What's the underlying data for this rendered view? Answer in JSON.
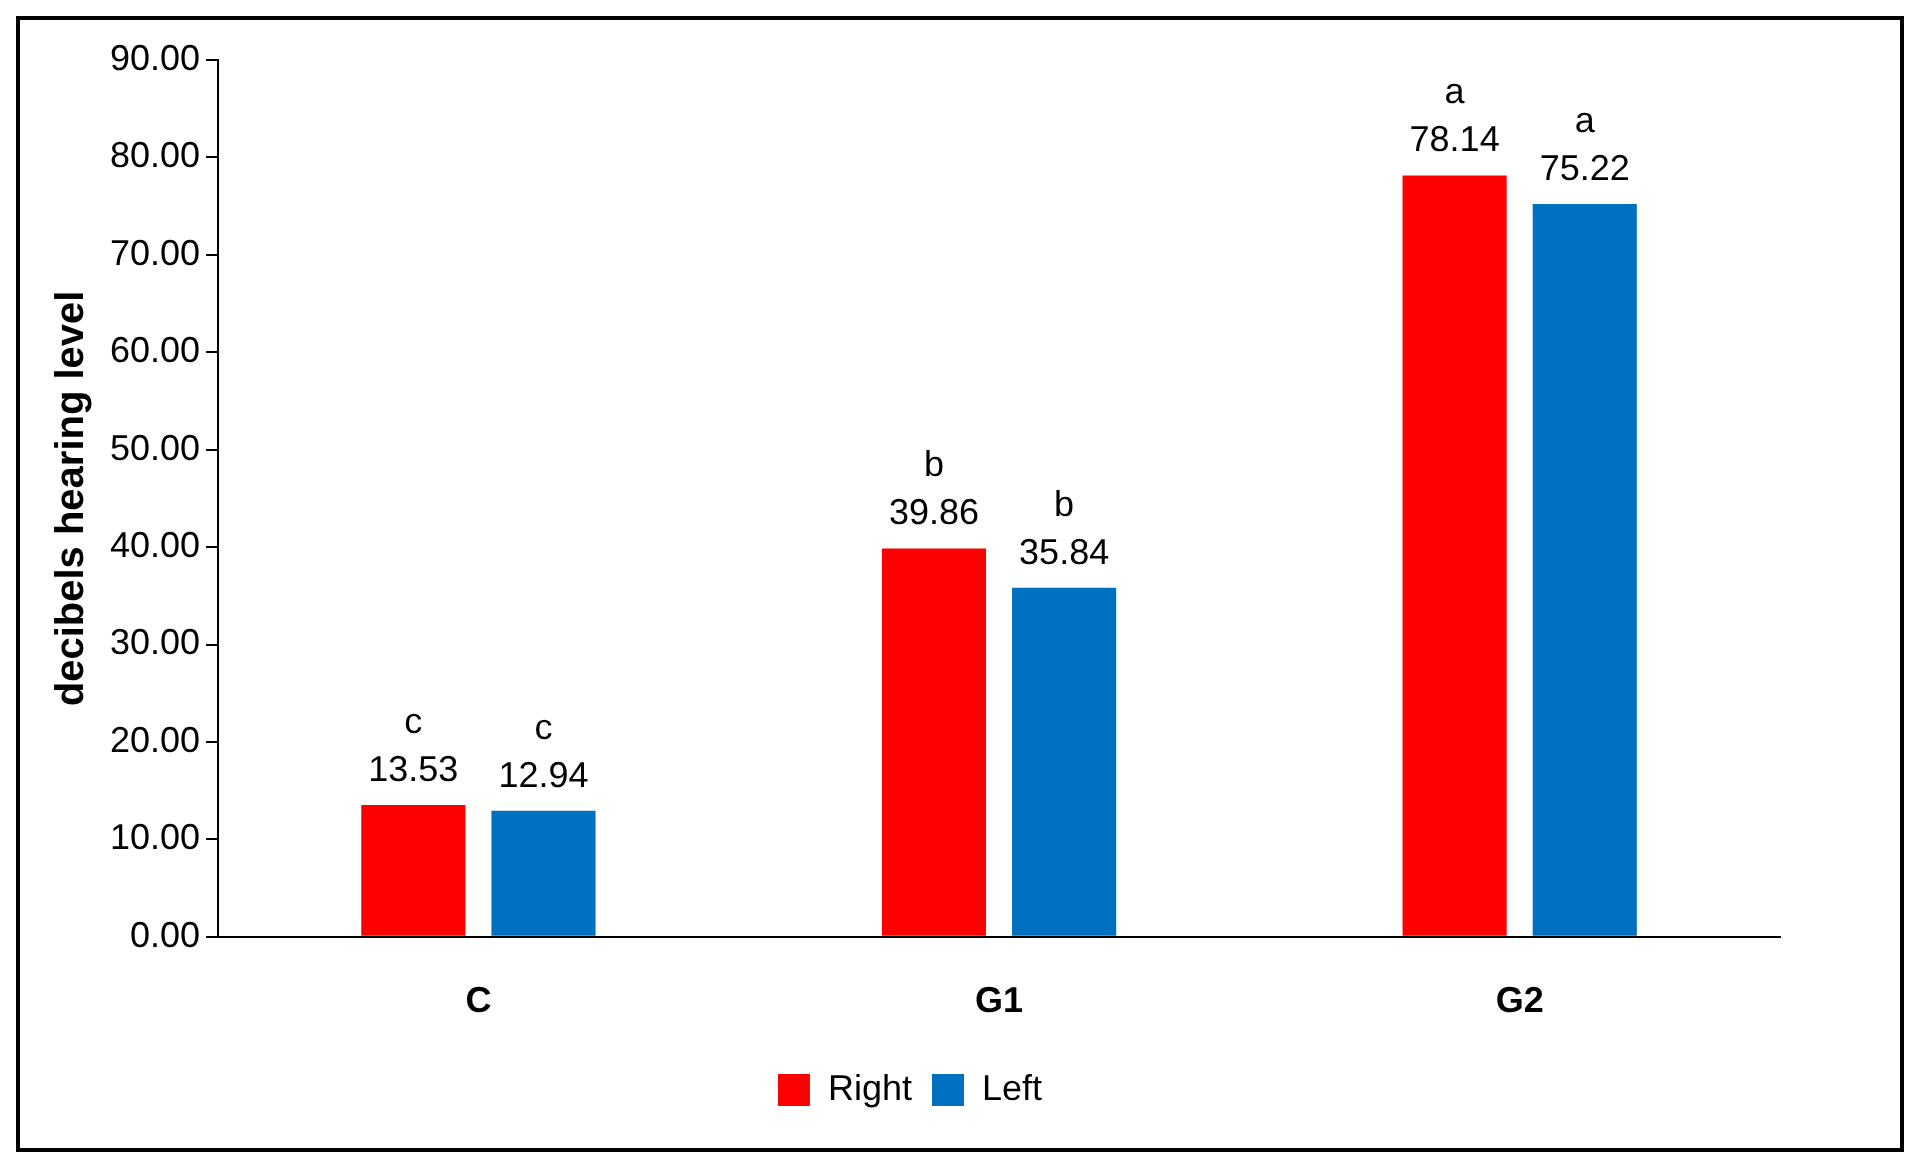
{
  "chart_data": {
    "type": "bar",
    "ylabel": "decibels hearing level",
    "categories": [
      "C",
      "G1",
      "G2"
    ],
    "series": [
      {
        "name": "Right",
        "color": "#ff0000",
        "values": [
          13.53,
          39.86,
          78.14
        ],
        "value_labels": [
          "c\n13.53",
          "b\n39.86",
          "a\n78.14"
        ]
      },
      {
        "name": "Left",
        "color": "#0070c0",
        "values": [
          12.94,
          35.84,
          75.22
        ],
        "value_labels": [
          "c\n12.94",
          "b\n35.84",
          "a\n75.22"
        ]
      }
    ],
    "ylim": [
      0,
      90
    ],
    "yticks": [
      {
        "value": 0,
        "label": "0.00"
      },
      {
        "value": 10,
        "label": "10.00"
      },
      {
        "value": 20,
        "label": "20.00"
      },
      {
        "value": 30,
        "label": "30.00"
      },
      {
        "value": 40,
        "label": "40.00"
      },
      {
        "value": 50,
        "label": "50.00"
      },
      {
        "value": 60,
        "label": "60.00"
      },
      {
        "value": 70,
        "label": "70.00"
      },
      {
        "value": 80,
        "label": "80.00"
      },
      {
        "value": 90,
        "label": "90.00"
      }
    ],
    "grid": false,
    "legend": "bottom"
  }
}
